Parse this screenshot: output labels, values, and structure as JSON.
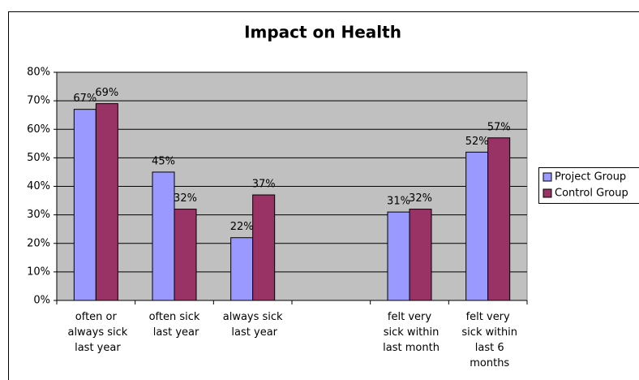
{
  "chart_data": {
    "type": "bar",
    "title": "Impact on Health",
    "categories": [
      "often or always sick last year",
      "often sick last year",
      "always sick last year",
      null,
      "felt very sick within last month",
      "felt very sick within last 6 months"
    ],
    "series": [
      {
        "name": "Project Group",
        "color": "#9999ff",
        "values": [
          67,
          45,
          22,
          null,
          31,
          52
        ],
        "value_labels": [
          "67%",
          "45%",
          "22%",
          null,
          "31%",
          "52%"
        ]
      },
      {
        "name": "Control Group",
        "color": "#993366",
        "values": [
          69,
          32,
          37,
          null,
          32,
          57
        ],
        "value_labels": [
          "69%",
          "32%",
          "37%",
          null,
          "32%",
          "57%"
        ]
      }
    ],
    "ylim": [
      0,
      80
    ],
    "yticks": [
      {
        "value": 0,
        "label": "0%"
      },
      {
        "value": 10,
        "label": "10%"
      },
      {
        "value": 20,
        "label": "20%"
      },
      {
        "value": 30,
        "label": "30%"
      },
      {
        "value": 40,
        "label": "40%"
      },
      {
        "value": 50,
        "label": "50%"
      },
      {
        "value": 60,
        "label": "60%"
      },
      {
        "value": 70,
        "label": "70%"
      },
      {
        "value": 80,
        "label": "80%"
      }
    ],
    "grid": true,
    "legend": "right"
  }
}
